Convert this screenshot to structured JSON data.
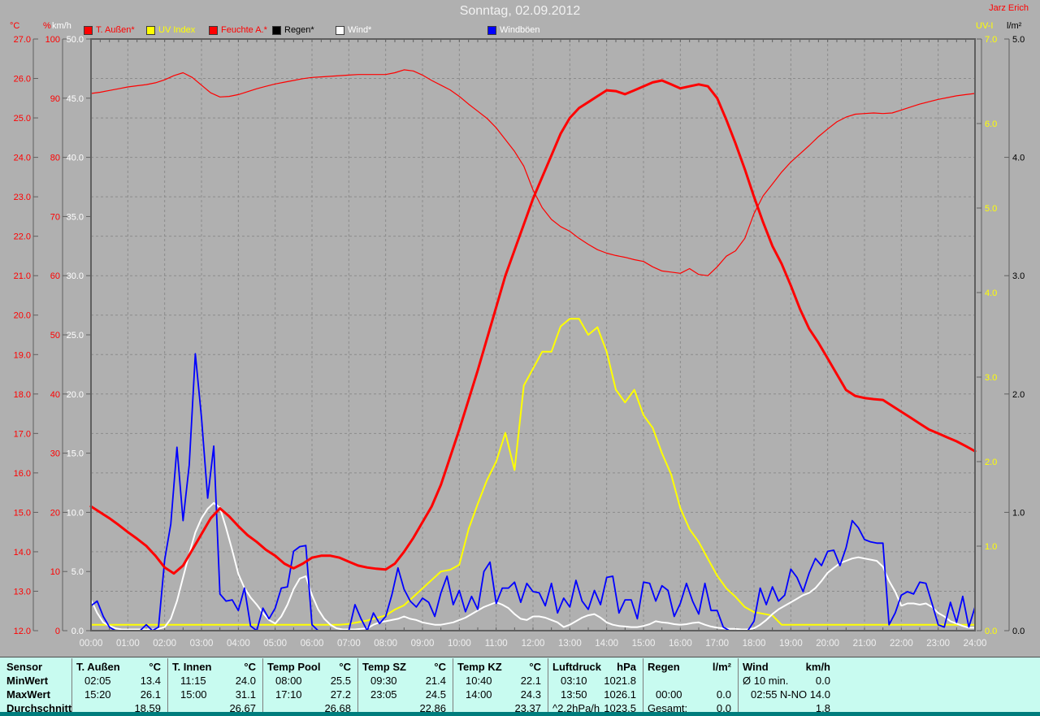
{
  "header": {
    "title": "Sonntag, 02.09.2012",
    "author": "Jarz Erich"
  },
  "legend": [
    {
      "label": "T. Außen*",
      "swatch": "#ff0000",
      "text_color": "#ff0000",
      "x": 103
    },
    {
      "label": "UV Index",
      "swatch": "#ffff00",
      "text_color": "#ffff00",
      "x": 180
    },
    {
      "label": "Feuchte A.*",
      "swatch": "#ff0000",
      "text_color": "#ff0000",
      "x": 257
    },
    {
      "label": "Regen*",
      "swatch": "#000000",
      "text_color": "#000000",
      "x": 335
    },
    {
      "label": "Wind*",
      "swatch": "#ffffff",
      "text_color": "#ffffff",
      "x": 413
    },
    {
      "label": "Windböen",
      "swatch": "#0000ff",
      "text_color": "#ffffff",
      "x": 600
    }
  ],
  "axes": {
    "left": [
      {
        "unit": "°C",
        "color": "#ff0000",
        "min": 12,
        "max": 27,
        "step": 1,
        "decimals": 1
      },
      {
        "unit": "%",
        "color": "#ff0000",
        "min": 0,
        "max": 100,
        "step": 10,
        "decimals": 0
      },
      {
        "unit": "km/h",
        "color": "#ffffff",
        "min": 0,
        "max": 50,
        "step": 5,
        "decimals": 1
      }
    ],
    "right": [
      {
        "unit": "UV-I",
        "color": "#ffff00",
        "min": 0,
        "max": 7,
        "step": 1,
        "decimals": 1
      },
      {
        "unit": "l/m²",
        "color": "#000000",
        "min": 0,
        "max": 5,
        "step": 1,
        "decimals": 1
      }
    ],
    "x": {
      "labels": [
        "00:00",
        "01:00",
        "02:00",
        "03:00",
        "04:00",
        "05:00",
        "06:00",
        "07:00",
        "08:00",
        "09:00",
        "10:00",
        "11:00",
        "12:00",
        "13:00",
        "14:00",
        "15:00",
        "16:00",
        "17:00",
        "18:00",
        "19:00",
        "20:00",
        "21:00",
        "22:00",
        "23:00",
        "24:00"
      ]
    }
  },
  "chart_data": {
    "type": "line",
    "x_range_hours": [
      0,
      24
    ],
    "grid": true,
    "axis_ranges": {
      "temp": [
        12,
        27
      ],
      "humidity": [
        0,
        100
      ],
      "wind": [
        0,
        50
      ],
      "uv": [
        0,
        7
      ],
      "rain": [
        0,
        5
      ]
    },
    "series": [
      {
        "name": "UV Index",
        "unit": "UV-I",
        "color": "#ffff00",
        "width": 2,
        "axis": "uv",
        "interval_h": 0.25,
        "values": [
          0.07,
          0.07,
          0.07,
          0.07,
          0.07,
          0.07,
          0.07,
          0.07,
          0.07,
          0.07,
          0.07,
          0.07,
          0.07,
          0.07,
          0.07,
          0.07,
          0.07,
          0.07,
          0.07,
          0.07,
          0.07,
          0.07,
          0.07,
          0.07,
          0.07,
          0.07,
          0.07,
          0.07,
          0.08,
          0.1,
          0.12,
          0.15,
          0.18,
          0.25,
          0.3,
          0.4,
          0.5,
          0.6,
          0.7,
          0.72,
          0.78,
          1.2,
          1.5,
          1.78,
          2.0,
          2.34,
          1.9,
          2.9,
          3.1,
          3.3,
          3.3,
          3.6,
          3.69,
          3.69,
          3.5,
          3.59,
          3.3,
          2.85,
          2.7,
          2.85,
          2.55,
          2.4,
          2.1,
          1.85,
          1.45,
          1.2,
          1.05,
          0.85,
          0.65,
          0.5,
          0.4,
          0.28,
          0.22,
          0.2,
          0.18,
          0.07,
          0.07,
          0.07,
          0.07,
          0.07,
          0.07,
          0.07,
          0.07,
          0.07,
          0.07,
          0.07,
          0.07,
          0.07,
          0.07,
          0.07,
          0.07,
          0.07,
          0.07,
          0.07,
          0.07,
          0.07,
          0.07
        ]
      },
      {
        "name": "Wind",
        "unit": "km/h",
        "color": "#ffffff",
        "width": 2,
        "axis": "wind",
        "interval_h": 0.16667,
        "values": [
          2.6,
          1.5,
          0.7,
          0.4,
          0.2,
          0.1,
          0.1,
          0.1,
          0.1,
          0.1,
          0.1,
          0.15,
          0.3,
          1.0,
          2.5,
          4.5,
          6.5,
          8.3,
          9.5,
          10.3,
          10.8,
          10.4,
          8.7,
          6.8,
          4.8,
          3.6,
          2.8,
          2.2,
          1.5,
          0.9,
          0.6,
          1.2,
          2.2,
          3.5,
          4.4,
          4.6,
          3.0,
          1.8,
          1.0,
          0.5,
          0.2,
          0.1,
          0.1,
          0.1,
          0.15,
          0.2,
          0.5,
          0.7,
          0.8,
          0.9,
          1.0,
          1.2,
          1.0,
          0.9,
          0.7,
          0.6,
          0.5,
          0.5,
          0.6,
          0.7,
          0.9,
          1.1,
          1.4,
          1.7,
          2.0,
          2.2,
          2.4,
          2.2,
          1.9,
          1.4,
          1.0,
          0.9,
          1.2,
          1.2,
          1.1,
          0.9,
          0.7,
          0.3,
          0.5,
          0.8,
          1.1,
          1.3,
          1.4,
          1.1,
          0.7,
          0.5,
          0.4,
          0.35,
          0.3,
          0.3,
          0.4,
          0.55,
          0.8,
          0.7,
          0.65,
          0.55,
          0.5,
          0.55,
          0.65,
          0.7,
          0.5,
          0.35,
          0.25,
          0.2,
          0.15,
          0.15,
          0.1,
          0.1,
          0.2,
          0.5,
          0.9,
          1.4,
          1.8,
          2.1,
          2.4,
          2.7,
          3.0,
          3.2,
          3.6,
          4.2,
          4.9,
          5.3,
          5.7,
          5.9,
          6.1,
          6.2,
          6.1,
          6.0,
          5.9,
          5.4,
          4.2,
          3.3,
          2.1,
          2.3,
          2.3,
          2.2,
          2.3,
          2.0,
          1.5,
          1.2,
          0.8,
          0.6,
          0.4,
          0.25,
          0.25
        ]
      },
      {
        "name": "Windböen",
        "unit": "km/h",
        "color": "#0000ff",
        "width": 1.8,
        "axis": "wind",
        "interval_h": 0.16667,
        "values": [
          2.1,
          2.5,
          1.2,
          0.3,
          0.0,
          0.0,
          0.0,
          0.0,
          0.0,
          0.5,
          0.0,
          0.3,
          6.0,
          9.0,
          15.5,
          9.3,
          14.0,
          23.4,
          18.0,
          11.2,
          15.6,
          3.1,
          2.5,
          2.6,
          1.7,
          3.6,
          0.4,
          0.0,
          1.9,
          1.0,
          1.9,
          3.6,
          3.7,
          6.7,
          7.1,
          7.2,
          0.5,
          0.0,
          0.0,
          0.0,
          0.0,
          0.0,
          0.0,
          2.2,
          1.0,
          0.0,
          1.5,
          0.6,
          1.2,
          3.0,
          5.3,
          3.5,
          2.5,
          2.0,
          2.75,
          2.4,
          1.2,
          3.2,
          4.6,
          2.2,
          3.4,
          1.6,
          2.9,
          1.8,
          5.0,
          5.8,
          2.3,
          3.6,
          3.6,
          4.1,
          2.4,
          4.0,
          3.3,
          3.2,
          2.1,
          4.0,
          1.5,
          2.75,
          2.0,
          4.25,
          2.5,
          1.8,
          3.4,
          2.2,
          4.5,
          4.6,
          1.5,
          2.6,
          2.6,
          1.0,
          4.1,
          4.0,
          2.5,
          3.8,
          3.4,
          1.2,
          2.3,
          4.0,
          2.5,
          1.4,
          4.0,
          1.7,
          1.7,
          0.3,
          0.0,
          0.0,
          0.0,
          0.0,
          0.8,
          3.6,
          2.2,
          3.7,
          2.5,
          3.0,
          5.2,
          4.5,
          3.3,
          4.9,
          6.1,
          5.5,
          6.7,
          6.8,
          5.5,
          7.0,
          9.3,
          8.7,
          7.7,
          7.5,
          7.4,
          7.4,
          0.5,
          1.5,
          3.0,
          3.3,
          3.1,
          4.1,
          4.0,
          2.3,
          0.5,
          0.3,
          2.4,
          0.7,
          2.9,
          0.3,
          2.0
        ]
      },
      {
        "name": "Feuchte A.",
        "unit": "%",
        "color": "#ff0000",
        "width": 1.2,
        "axis": "humidity",
        "interval_h": 0.25,
        "values": [
          90.8,
          91.0,
          91.3,
          91.6,
          91.9,
          92.1,
          92.3,
          92.6,
          93.1,
          93.8,
          94.3,
          93.5,
          92.2,
          90.9,
          90.2,
          90.3,
          90.6,
          91.1,
          91.6,
          92.0,
          92.4,
          92.7,
          93.0,
          93.3,
          93.5,
          93.6,
          93.7,
          93.8,
          93.9,
          94.0,
          94.0,
          94.0,
          94.0,
          94.3,
          94.8,
          94.6,
          93.9,
          93.0,
          92.2,
          91.4,
          90.3,
          89.0,
          87.8,
          86.6,
          85.0,
          83.0,
          81.0,
          78.5,
          74.5,
          71.5,
          69.5,
          68.3,
          67.5,
          66.3,
          65.3,
          64.4,
          63.8,
          63.4,
          63.1,
          62.7,
          62.4,
          61.5,
          60.8,
          60.6,
          60.4,
          61.2,
          60.2,
          60.0,
          61.5,
          63.3,
          64.2,
          66.3,
          70.5,
          73.5,
          75.5,
          77.5,
          79.2,
          80.6,
          82.0,
          83.5,
          84.8,
          86.0,
          86.8,
          87.3,
          87.4,
          87.5,
          87.4,
          87.5,
          88.0,
          88.5,
          89.0,
          89.4,
          89.8,
          90.1,
          90.4,
          90.6,
          90.8
        ]
      },
      {
        "name": "T. Außen",
        "unit": "°C",
        "color": "#ff0000",
        "width": 3,
        "axis": "temp",
        "interval_h": 0.25,
        "values": [
          15.15,
          15.0,
          14.85,
          14.68,
          14.5,
          14.33,
          14.15,
          13.9,
          13.6,
          13.45,
          13.65,
          14.05,
          14.45,
          14.85,
          15.1,
          14.9,
          14.65,
          14.42,
          14.25,
          14.05,
          13.9,
          13.7,
          13.58,
          13.7,
          13.85,
          13.9,
          13.9,
          13.85,
          13.75,
          13.65,
          13.6,
          13.57,
          13.55,
          13.7,
          14.0,
          14.35,
          14.75,
          15.15,
          15.7,
          16.4,
          17.1,
          17.85,
          18.6,
          19.4,
          20.2,
          21.0,
          21.65,
          22.3,
          22.95,
          23.5,
          24.05,
          24.6,
          25.0,
          25.25,
          25.4,
          25.55,
          25.7,
          25.68,
          25.6,
          25.7,
          25.8,
          25.9,
          25.95,
          25.85,
          25.75,
          25.8,
          25.85,
          25.8,
          25.5,
          24.95,
          24.35,
          23.7,
          23.0,
          22.35,
          21.75,
          21.3,
          20.75,
          20.15,
          19.65,
          19.3,
          18.9,
          18.5,
          18.1,
          17.95,
          17.9,
          17.87,
          17.85,
          17.7,
          17.55,
          17.4,
          17.25,
          17.1,
          17.0,
          16.9,
          16.8,
          16.68,
          16.55
        ]
      },
      {
        "name": "Regen",
        "unit": "l/m²",
        "color": "#000000",
        "width": 2,
        "axis": "rain",
        "interval_h": 24,
        "values": [
          0,
          0
        ]
      }
    ]
  },
  "table": {
    "row_labels": [
      "Sensor",
      "MinWert",
      "MaxWert",
      "Durchschnitt"
    ],
    "columns": [
      {
        "name": "T. Außen",
        "unit": "°C",
        "min": [
          "02:05",
          "13.4"
        ],
        "max": [
          "15:20",
          "26.1"
        ],
        "avg": [
          "",
          "18.59"
        ]
      },
      {
        "name": "T. Innen",
        "unit": "°C",
        "min": [
          "11:15",
          "24.0"
        ],
        "max": [
          "15:00",
          "31.1"
        ],
        "avg": [
          "",
          "26.67"
        ]
      },
      {
        "name": "Temp Pool",
        "unit": "°C",
        "min": [
          "08:00",
          "25.5"
        ],
        "max": [
          "17:10",
          "27.2"
        ],
        "avg": [
          "",
          "26.68"
        ]
      },
      {
        "name": "Temp SZ",
        "unit": "°C",
        "min": [
          "09:30",
          "21.4"
        ],
        "max": [
          "23:05",
          "24.5"
        ],
        "avg": [
          "",
          "22.86"
        ]
      },
      {
        "name": "Temp KZ",
        "unit": "°C",
        "min": [
          "10:40",
          "22.1"
        ],
        "max": [
          "14:00",
          "24.3"
        ],
        "avg": [
          "",
          "23.37"
        ]
      },
      {
        "name": "Luftdruck",
        "unit": "hPa",
        "min": [
          "03:10",
          "1021.8"
        ],
        "max": [
          "13:50",
          "1026.1"
        ],
        "avg": [
          "^2.2hPa/h",
          "1023.5"
        ]
      },
      {
        "name": "Regen",
        "unit": "l/m²",
        "min": [
          "",
          ""
        ],
        "max": [
          "00:00",
          "0.0"
        ],
        "avg": [
          "Gesamt:",
          "0.0"
        ]
      },
      {
        "name": "Wind",
        "unit": "km/h",
        "min": [
          "Ø 10 min.",
          "0.0"
        ],
        "max": [
          "02:55",
          "N-NO 14.0"
        ],
        "avg": [
          "",
          "1.8"
        ]
      }
    ]
  },
  "colors": {
    "background": "#b0b0b0",
    "grid": "#8b8b8b",
    "frame": "#5f5f5f",
    "table_background": "#c8fbf0",
    "table_separator": "#7d7d7d",
    "teal_bar": "#007d7d",
    "title_text": "#f2f2f2",
    "author_text": "#ff0000"
  }
}
